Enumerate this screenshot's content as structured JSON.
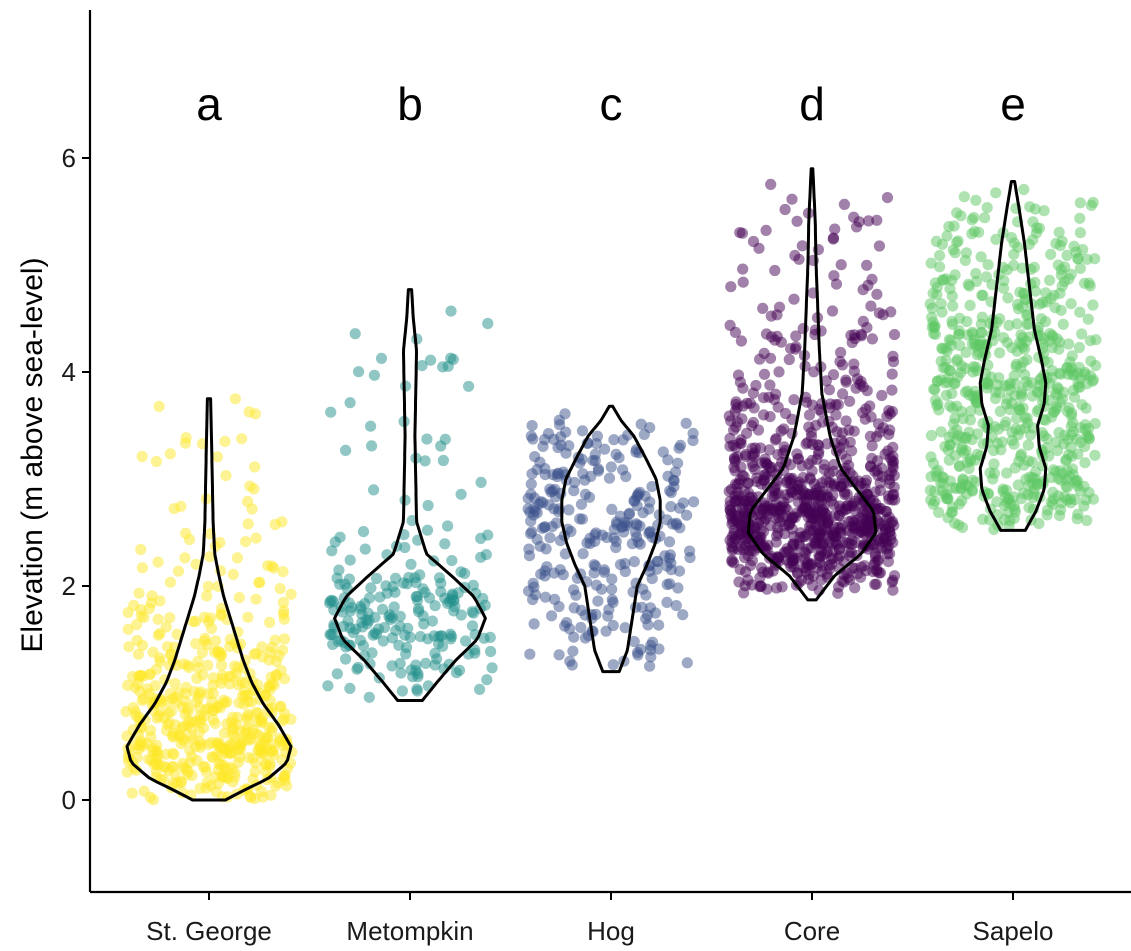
{
  "chart_data": {
    "type": "scatter",
    "subtype": "violin-with-jitter",
    "title": "",
    "xlabel": "",
    "ylabel": "Elevation (m above sea-level)",
    "ylim": [
      -0.85,
      7.3
    ],
    "yticks": [
      0,
      2,
      4,
      6
    ],
    "yticks_labels": [
      "0",
      "2",
      "4",
      "6"
    ],
    "grid": false,
    "legend": "none",
    "categories": [
      "St. George",
      "Metompkin",
      "Hog",
      "Core",
      "Sapelo"
    ],
    "series": [
      {
        "category": "St. George",
        "letter": "a",
        "color": "#FDE725",
        "n_points": 520,
        "min": 0.0,
        "max": 3.75,
        "mode": 0.45,
        "violin": [
          [
            0.0,
            0.2
          ],
          [
            0.1,
            0.45
          ],
          [
            0.2,
            0.72
          ],
          [
            0.35,
            0.95
          ],
          [
            0.5,
            1.0
          ],
          [
            0.7,
            0.85
          ],
          [
            0.9,
            0.66
          ],
          [
            1.1,
            0.52
          ],
          [
            1.3,
            0.42
          ],
          [
            1.5,
            0.34
          ],
          [
            1.7,
            0.26
          ],
          [
            1.9,
            0.18
          ],
          [
            2.1,
            0.12
          ],
          [
            2.3,
            0.07
          ],
          [
            2.6,
            0.05
          ],
          [
            3.0,
            0.04
          ],
          [
            3.4,
            0.03
          ],
          [
            3.75,
            0.02
          ]
        ]
      },
      {
        "category": "Metompkin",
        "letter": "b",
        "color": "#21908C",
        "n_points": 230,
        "min": 0.93,
        "max": 4.77,
        "mode": 1.7,
        "violin": [
          [
            0.93,
            0.15
          ],
          [
            1.1,
            0.33
          ],
          [
            1.3,
            0.55
          ],
          [
            1.5,
            0.82
          ],
          [
            1.7,
            0.92
          ],
          [
            1.9,
            0.78
          ],
          [
            2.1,
            0.5
          ],
          [
            2.3,
            0.2
          ],
          [
            2.6,
            0.08
          ],
          [
            3.0,
            0.07
          ],
          [
            3.4,
            0.06
          ],
          [
            3.8,
            0.07
          ],
          [
            4.2,
            0.08
          ],
          [
            4.5,
            0.04
          ],
          [
            4.77,
            0.02
          ]
        ]
      },
      {
        "category": "Hog",
        "letter": "c",
        "color": "#3B528B",
        "n_points": 300,
        "min": 1.2,
        "max": 3.68,
        "mode": 2.65,
        "violin": [
          [
            1.2,
            0.1
          ],
          [
            1.4,
            0.2
          ],
          [
            1.6,
            0.24
          ],
          [
            1.8,
            0.28
          ],
          [
            2.0,
            0.32
          ],
          [
            2.2,
            0.44
          ],
          [
            2.4,
            0.54
          ],
          [
            2.6,
            0.6
          ],
          [
            2.8,
            0.6
          ],
          [
            3.0,
            0.55
          ],
          [
            3.2,
            0.42
          ],
          [
            3.4,
            0.28
          ],
          [
            3.55,
            0.12
          ],
          [
            3.68,
            0.02
          ]
        ]
      },
      {
        "category": "Core",
        "letter": "d",
        "color": "#440154",
        "n_points": 900,
        "min": 1.87,
        "max": 5.9,
        "mode": 2.6,
        "violin": [
          [
            1.87,
            0.05
          ],
          [
            2.1,
            0.28
          ],
          [
            2.3,
            0.6
          ],
          [
            2.5,
            0.78
          ],
          [
            2.7,
            0.75
          ],
          [
            2.9,
            0.55
          ],
          [
            3.1,
            0.35
          ],
          [
            3.4,
            0.22
          ],
          [
            3.8,
            0.12
          ],
          [
            4.2,
            0.09
          ],
          [
            4.6,
            0.07
          ],
          [
            5.0,
            0.05
          ],
          [
            5.4,
            0.04
          ],
          [
            5.9,
            0.01
          ]
        ]
      },
      {
        "category": "Sapelo",
        "letter": "e",
        "color": "#5DC863",
        "n_points": 650,
        "min": 2.52,
        "max": 5.78,
        "mode": 3.7,
        "violin": [
          [
            2.52,
            0.15
          ],
          [
            2.7,
            0.28
          ],
          [
            2.9,
            0.38
          ],
          [
            3.1,
            0.4
          ],
          [
            3.3,
            0.32
          ],
          [
            3.5,
            0.3
          ],
          [
            3.7,
            0.38
          ],
          [
            3.9,
            0.4
          ],
          [
            4.1,
            0.35
          ],
          [
            4.4,
            0.26
          ],
          [
            4.8,
            0.2
          ],
          [
            5.2,
            0.14
          ],
          [
            5.5,
            0.08
          ],
          [
            5.78,
            0.02
          ]
        ]
      }
    ]
  }
}
